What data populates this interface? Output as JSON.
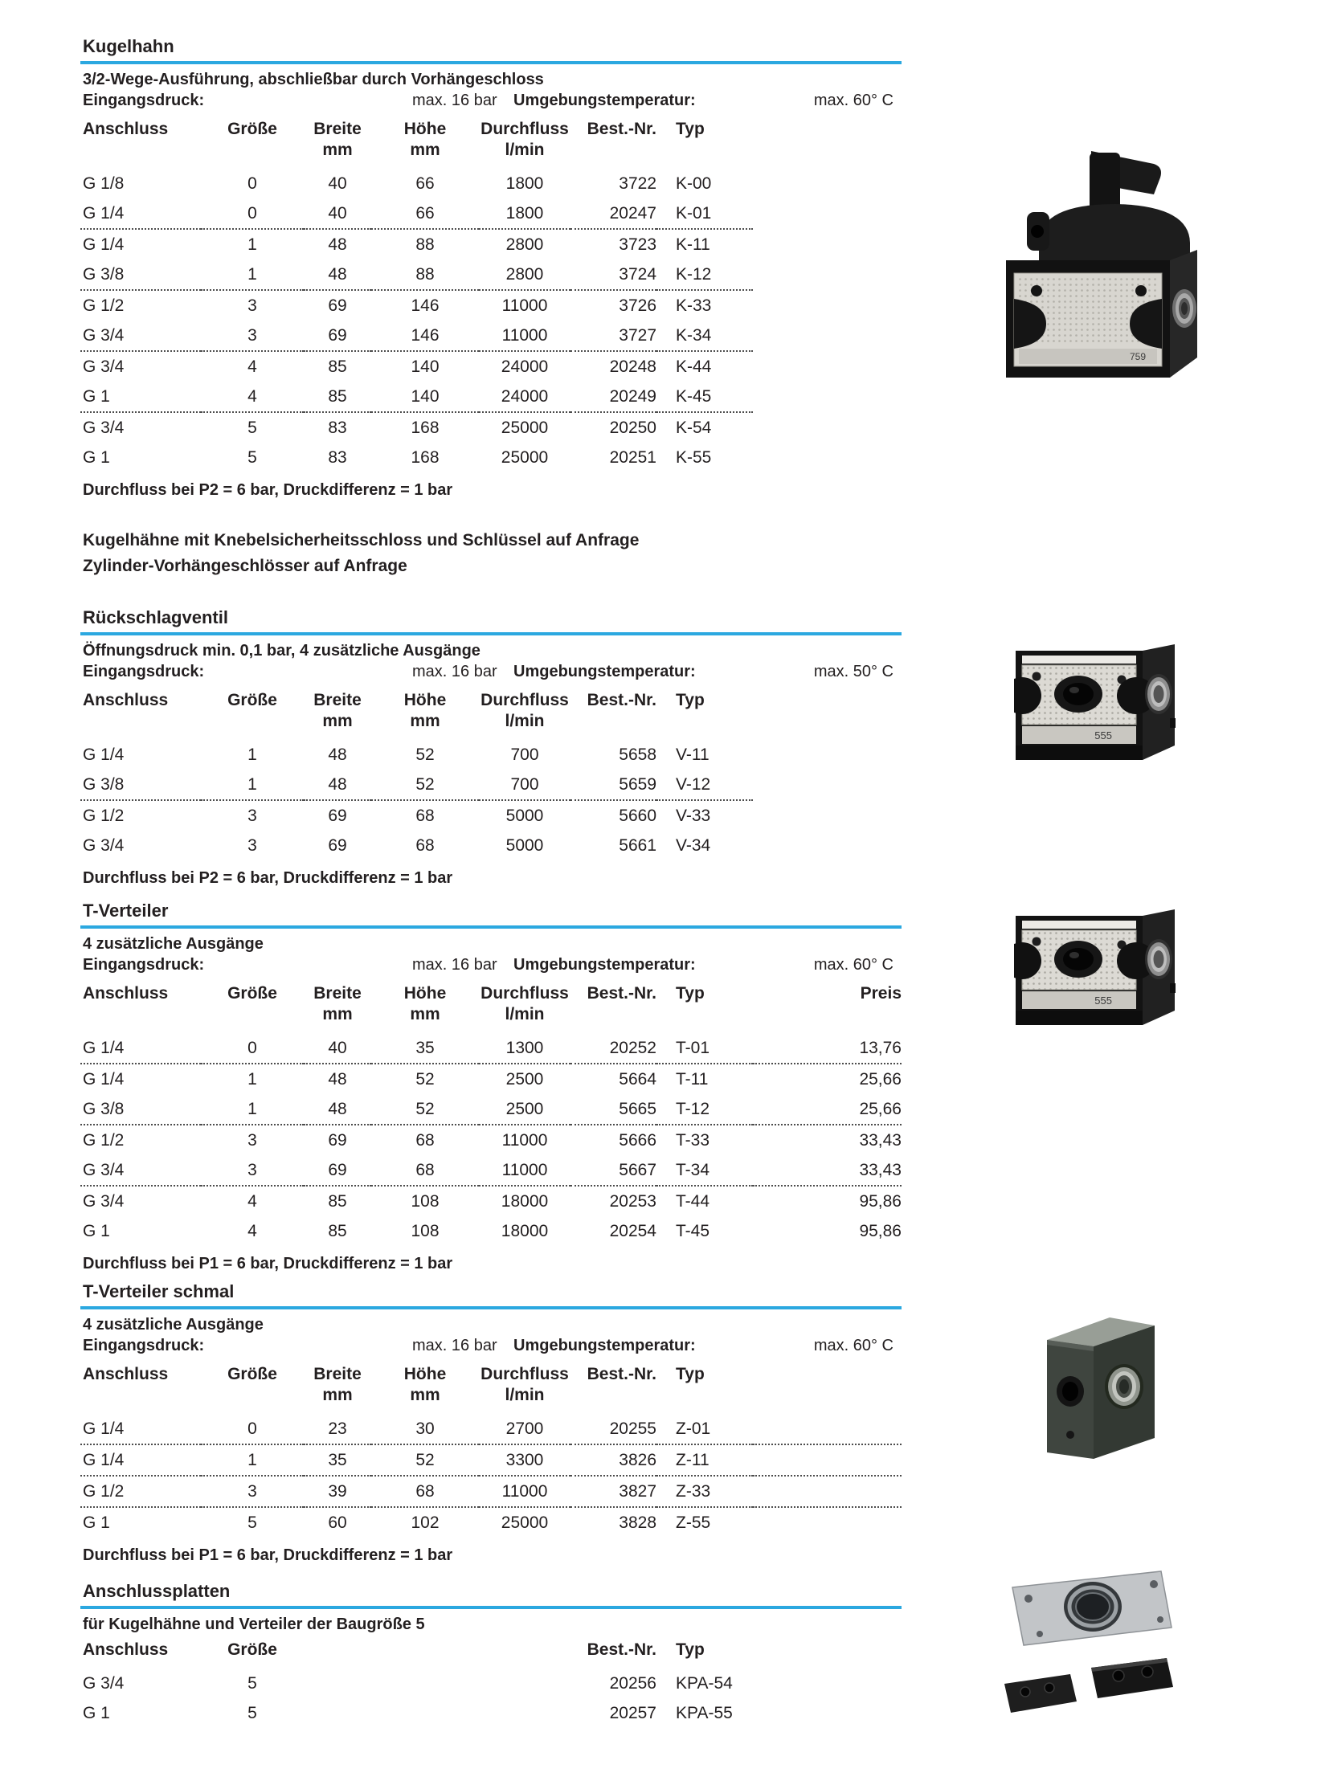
{
  "accent_color": "#2ba8e0",
  "notes": {
    "line1": "Kugelhähne mit Knebelsicherheitsschloss und Schlüssel auf Anfrage",
    "line2": "Zylinder-Vorhängeschlösser auf Anfrage"
  },
  "sections": [
    {
      "title": "Kugelhahn",
      "subtitle": "3/2-Wege-Ausführung, abschließbar durch Vorhängeschloss",
      "inlet_label": "Eingangsdruck:",
      "inlet_value": "max. 16 bar",
      "ambient_label": "Umgebungstemperatur:",
      "ambient_value": "max. 60° C",
      "columns": [
        {
          "label": "Anschluss",
          "unit": "",
          "align": "left",
          "width": 150
        },
        {
          "label": "Größe",
          "unit": "",
          "align": "center",
          "width": 128
        },
        {
          "label": "Breite",
          "unit": "mm",
          "align": "center",
          "width": 84
        },
        {
          "label": "Höhe",
          "unit": "mm",
          "align": "center",
          "width": 134
        },
        {
          "label": "Durchfluss",
          "unit": "l/min",
          "align": "center",
          "width": 114
        },
        {
          "label": "Best.-Nr.",
          "unit": "",
          "align": "right",
          "width": 107
        },
        {
          "label": "Typ",
          "unit": "",
          "align": "left",
          "width": 120,
          "pad": true
        },
        {
          "label": "",
          "unit": "",
          "align": "left",
          "width": 0,
          "nosep": true
        }
      ],
      "rows": [
        [
          "G 1/8",
          "0",
          "40",
          "66",
          "1800",
          "3722",
          "K-00",
          ""
        ],
        [
          "G 1/4",
          "0",
          "40",
          "66",
          "1800",
          "20247",
          "K-01",
          ""
        ],
        [
          "G 1/4",
          "1",
          "48",
          "88",
          "2800",
          "3723",
          "K-11",
          ""
        ],
        [
          "G 3/8",
          "1",
          "48",
          "88",
          "2800",
          "3724",
          "K-12",
          ""
        ],
        [
          "G 1/2",
          "3",
          "69",
          "146",
          "11000",
          "3726",
          "K-33",
          ""
        ],
        [
          "G 3/4",
          "3",
          "69",
          "146",
          "11000",
          "3727",
          "K-34",
          ""
        ],
        [
          "G 3/4",
          "4",
          "85",
          "140",
          "24000",
          "20248",
          "K-44",
          ""
        ],
        [
          "G 1",
          "4",
          "85",
          "140",
          "24000",
          "20249",
          "K-45",
          ""
        ],
        [
          "G 3/4",
          "5",
          "83",
          "168",
          "25000",
          "20250",
          "K-54",
          ""
        ],
        [
          "G 1",
          "5",
          "83",
          "168",
          "25000",
          "20251",
          "K-55",
          ""
        ]
      ],
      "separators_after": [
        1,
        3,
        5,
        7
      ],
      "footnote": "Durchfluss bei P2 = 6 bar, Druckdifferenz = 1 bar",
      "photo_label": "759"
    },
    {
      "title": "Rückschlagventil",
      "subtitle": "Öffnungsdruck min. 0,1 bar, 4 zusätzliche Ausgänge",
      "inlet_label": "Eingangsdruck:",
      "inlet_value": "max. 16 bar",
      "ambient_label": "Umgebungstemperatur:",
      "ambient_value": "max. 50° C",
      "columns": [
        {
          "label": "Anschluss",
          "unit": "",
          "align": "left",
          "width": 150
        },
        {
          "label": "Größe",
          "unit": "",
          "align": "center",
          "width": 128
        },
        {
          "label": "Breite",
          "unit": "mm",
          "align": "center",
          "width": 84
        },
        {
          "label": "Höhe",
          "unit": "mm",
          "align": "center",
          "width": 134
        },
        {
          "label": "Durchfluss",
          "unit": "l/min",
          "align": "center",
          "width": 114
        },
        {
          "label": "Best.-Nr.",
          "unit": "",
          "align": "right",
          "width": 107
        },
        {
          "label": "Typ",
          "unit": "",
          "align": "left",
          "width": 120,
          "pad": true
        },
        {
          "label": "",
          "unit": "",
          "align": "left",
          "width": 0,
          "nosep": true
        }
      ],
      "rows": [
        [
          "G 1/4",
          "1",
          "48",
          "52",
          "700",
          "5658",
          "V-11",
          ""
        ],
        [
          "G 3/8",
          "1",
          "48",
          "52",
          "700",
          "5659",
          "V-12",
          ""
        ],
        [
          "G 1/2",
          "3",
          "69",
          "68",
          "5000",
          "5660",
          "V-33",
          ""
        ],
        [
          "G 3/4",
          "3",
          "69",
          "68",
          "5000",
          "5661",
          "V-34",
          ""
        ]
      ],
      "separators_after": [
        1
      ],
      "footnote": "Durchfluss bei P2 = 6 bar, Druckdifferenz = 1 bar",
      "photo_label": "555"
    },
    {
      "title": "T-Verteiler",
      "subtitle": "4 zusätzliche Ausgänge",
      "inlet_label": "Eingangsdruck:",
      "inlet_value": "max. 16 bar",
      "ambient_label": "Umgebungstemperatur:",
      "ambient_value": "max. 60° C",
      "columns": [
        {
          "label": "Anschluss",
          "unit": "",
          "align": "left",
          "width": 150
        },
        {
          "label": "Größe",
          "unit": "",
          "align": "center",
          "width": 128
        },
        {
          "label": "Breite",
          "unit": "mm",
          "align": "center",
          "width": 84
        },
        {
          "label": "Höhe",
          "unit": "mm",
          "align": "center",
          "width": 134
        },
        {
          "label": "Durchfluss",
          "unit": "l/min",
          "align": "center",
          "width": 114
        },
        {
          "label": "Best.-Nr.",
          "unit": "",
          "align": "right",
          "width": 107
        },
        {
          "label": "Typ",
          "unit": "",
          "align": "left",
          "width": 120,
          "pad": true
        },
        {
          "label": "Preis",
          "unit": "",
          "align": "right",
          "width": 0
        }
      ],
      "rows": [
        [
          "G 1/4",
          "0",
          "40",
          "35",
          "1300",
          "20252",
          "T-01",
          "13,76"
        ],
        [
          "G 1/4",
          "1",
          "48",
          "52",
          "2500",
          "5664",
          "T-11",
          "25,66"
        ],
        [
          "G 3/8",
          "1",
          "48",
          "52",
          "2500",
          "5665",
          "T-12",
          "25,66"
        ],
        [
          "G 1/2",
          "3",
          "69",
          "68",
          "11000",
          "5666",
          "T-33",
          "33,43"
        ],
        [
          "G 3/4",
          "3",
          "69",
          "68",
          "11000",
          "5667",
          "T-34",
          "33,43"
        ],
        [
          "G 3/4",
          "4",
          "85",
          "108",
          "18000",
          "20253",
          "T-44",
          "95,86"
        ],
        [
          "G 1",
          "4",
          "85",
          "108",
          "18000",
          "20254",
          "T-45",
          "95,86"
        ]
      ],
      "separators_after": [
        0,
        2,
        4
      ],
      "footnote": "Durchfluss bei P1 = 6 bar, Druckdifferenz = 1 bar",
      "photo_label": "555"
    },
    {
      "title": "T-Verteiler schmal",
      "subtitle": "4 zusätzliche Ausgänge",
      "inlet_label": "Eingangsdruck:",
      "inlet_value": "max. 16 bar",
      "ambient_label": "Umgebungstemperatur:",
      "ambient_value": "max. 60° C",
      "columns": [
        {
          "label": "Anschluss",
          "unit": "",
          "align": "left",
          "width": 150
        },
        {
          "label": "Größe",
          "unit": "",
          "align": "center",
          "width": 128
        },
        {
          "label": "Breite",
          "unit": "mm",
          "align": "center",
          "width": 84
        },
        {
          "label": "Höhe",
          "unit": "mm",
          "align": "center",
          "width": 134
        },
        {
          "label": "Durchfluss",
          "unit": "l/min",
          "align": "center",
          "width": 114
        },
        {
          "label": "Best.-Nr.",
          "unit": "",
          "align": "right",
          "width": 107
        },
        {
          "label": "Typ",
          "unit": "",
          "align": "left",
          "width": 120,
          "pad": true
        },
        {
          "label": "",
          "unit": "",
          "align": "left",
          "width": 0
        }
      ],
      "rows": [
        [
          "G 1/4",
          "0",
          "23",
          "30",
          "2700",
          "20255",
          "Z-01",
          ""
        ],
        [
          "G 1/4",
          "1",
          "35",
          "52",
          "3300",
          "3826",
          "Z-11",
          ""
        ],
        [
          "G 1/2",
          "3",
          "39",
          "68",
          "11000",
          "3827",
          "Z-33",
          ""
        ],
        [
          "G 1",
          "5",
          "60",
          "102",
          "25000",
          "3828",
          "Z-55",
          ""
        ]
      ],
      "separators_after": [
        0,
        1,
        2
      ],
      "footnote": "Durchfluss bei P1 = 6 bar, Druckdifferenz = 1 bar",
      "photo_label": ""
    },
    {
      "title": "Anschlussplatten",
      "subtitle": "für Kugelhähne und Verteiler der Baugröße 5",
      "columns": [
        {
          "label": "Anschluss",
          "unit": "",
          "align": "left",
          "width": 150
        },
        {
          "label": "Größe",
          "unit": "",
          "align": "center",
          "width": 128
        },
        {
          "label": "",
          "unit": "",
          "align": "center",
          "width": 84
        },
        {
          "label": "",
          "unit": "",
          "align": "center",
          "width": 134
        },
        {
          "label": "",
          "unit": "",
          "align": "center",
          "width": 114
        },
        {
          "label": "Best.-Nr.",
          "unit": "",
          "align": "right",
          "width": 107
        },
        {
          "label": "Typ",
          "unit": "",
          "align": "left",
          "width": 120,
          "pad": true
        },
        {
          "label": "",
          "unit": "",
          "align": "left",
          "width": 0,
          "nosep": true
        }
      ],
      "rows": [
        [
          "G 3/4",
          "5",
          "",
          "",
          "",
          "20256",
          "KPA-54",
          ""
        ],
        [
          "G 1",
          "5",
          "",
          "",
          "",
          "20257",
          "KPA-55",
          ""
        ]
      ],
      "separators_after": [],
      "footnote": "",
      "photo_label": ""
    }
  ]
}
